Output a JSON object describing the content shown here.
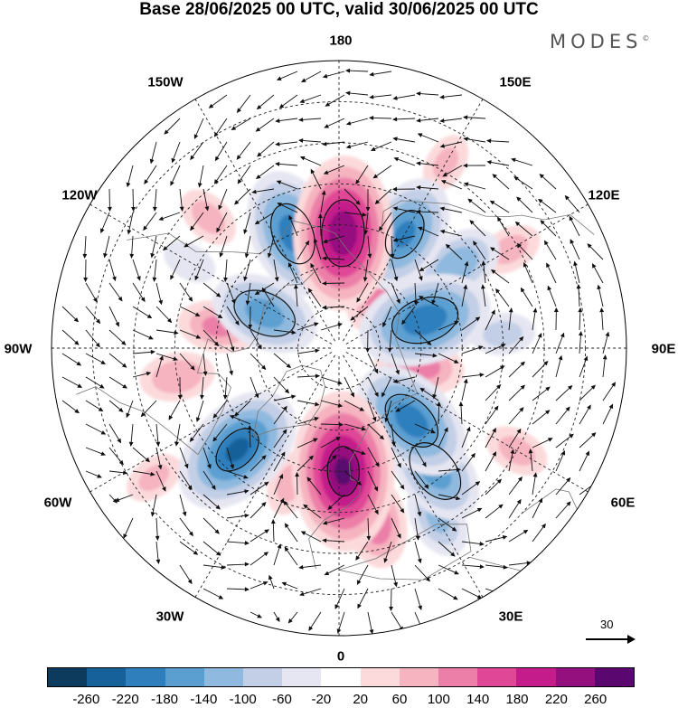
{
  "title": "Base 28/06/2025 00 UTC, valid 30/06/2025 00 UTC",
  "brand": "MODES",
  "brand_mark": "©",
  "longitudes": {
    "l180": "180",
    "l150w": "150W",
    "l150e": "150E",
    "l120w": "120W",
    "l120e": "120E",
    "l90w": "90W",
    "l90e": "90E",
    "l60w": "60W",
    "l60e": "60E",
    "l30w": "30W",
    "l30e": "30E",
    "l0": "0"
  },
  "reference_vector": "30",
  "colorbar": {
    "colors": [
      "#0c3b5e",
      "#17619a",
      "#2f7fbd",
      "#5b9fd1",
      "#8fb9de",
      "#c2cfe6",
      "#e6e6f2",
      "#ffffff",
      "#fcdadb",
      "#f6b3c0",
      "#ec7fa7",
      "#e04796",
      "#c41c8a",
      "#95107f",
      "#5a0870"
    ],
    "labels": [
      "-260",
      "-220",
      "-180",
      "-140",
      "-100",
      "-60",
      "-20",
      "20",
      "60",
      "100",
      "140",
      "180",
      "220",
      "260"
    ]
  },
  "anomaly_centers": [
    {
      "lat": 62,
      "lon": 178,
      "value": 240
    },
    {
      "lat": 58,
      "lon": 150,
      "value": -170
    },
    {
      "lat": 60,
      "lon": -158,
      "value": -190
    },
    {
      "lat": 55,
      "lon": 125,
      "value": -120
    },
    {
      "lat": 68,
      "lon": 108,
      "value": -200
    },
    {
      "lat": 72,
      "lon": 142,
      "value": 120
    },
    {
      "lat": 70,
      "lon": 78,
      "value": 110
    },
    {
      "lat": 70,
      "lon": -115,
      "value": -150
    },
    {
      "lat": 60,
      "lon": -100,
      "value": 90
    },
    {
      "lat": 50,
      "lon": -80,
      "value": 80
    },
    {
      "lat": 55,
      "lon": -45,
      "value": -210
    },
    {
      "lat": 60,
      "lon": 2,
      "value": 250
    },
    {
      "lat": 47,
      "lon": 12,
      "value": 120
    },
    {
      "lat": 65,
      "lon": 45,
      "value": -190
    },
    {
      "lat": 52,
      "lon": 38,
      "value": -150
    },
    {
      "lat": 42,
      "lon": 30,
      "value": -90
    },
    {
      "lat": 40,
      "lon": 60,
      "value": 60
    },
    {
      "lat": 42,
      "lon": 120,
      "value": 60
    },
    {
      "lat": 38,
      "lon": 150,
      "value": 50
    },
    {
      "lat": 45,
      "lon": -135,
      "value": 60
    },
    {
      "lat": 55,
      "lon": -20,
      "value": 60
    },
    {
      "lat": 35,
      "lon": -55,
      "value": 50
    },
    {
      "lat": 48,
      "lon": -120,
      "value": -40
    },
    {
      "lat": 50,
      "lon": 95,
      "value": -60
    }
  ]
}
